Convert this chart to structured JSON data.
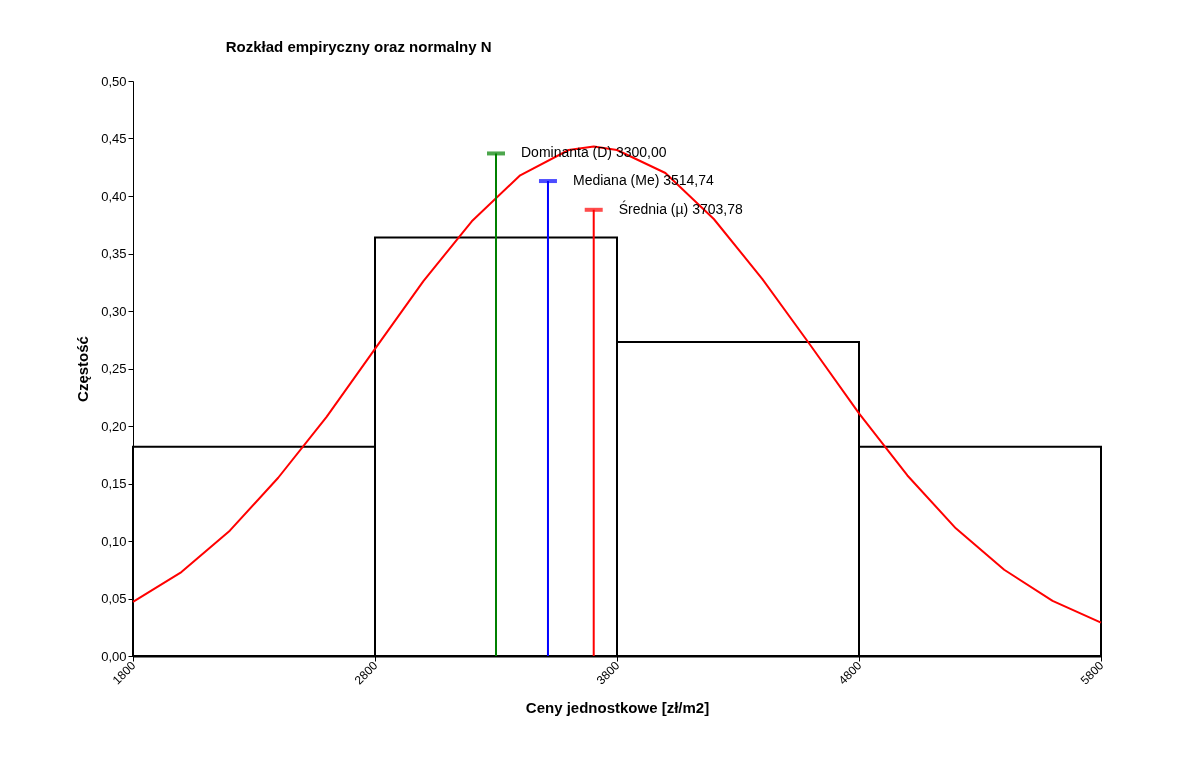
{
  "chart_data": {
    "type": "histogram",
    "title": "Rozkład empiryczny oraz normalny N",
    "xlabel": "Ceny jednostkowe  [zł/m2]",
    "ylabel": "Częstość",
    "bins": [
      1800,
      2800,
      3800,
      4800,
      5800
    ],
    "values": [
      0.182,
      0.364,
      0.273,
      0.182
    ],
    "color": "#000000",
    "series": [
      {
        "type": "line",
        "color": "#ff0000",
        "x": [
          1800,
          2000,
          2200,
          2400,
          2600,
          2800,
          3000,
          3200,
          3400,
          3600,
          3704,
          3800,
          4000,
          4200,
          4400,
          4600,
          4800,
          5000,
          5200,
          5400,
          5600,
          5800
        ],
        "values": [
          0.047,
          0.073,
          0.109,
          0.155,
          0.208,
          0.267,
          0.326,
          0.378,
          0.418,
          0.44,
          0.443,
          0.44,
          0.42,
          0.38,
          0.328,
          0.27,
          0.211,
          0.157,
          0.111,
          0.075,
          0.048,
          0.029
        ]
      },
      {
        "type": "line",
        "name": "Dominanta (D) 3300,00",
        "color": "#008000",
        "x": [
          3300,
          3300
        ],
        "values": [
          0,
          0.437
        ]
      },
      {
        "type": "line",
        "name": "Mediana (Me) 3514,74",
        "color": "#0000ff",
        "x": [
          3514.74,
          3514.74
        ],
        "values": [
          0,
          0.413
        ]
      },
      {
        "type": "line",
        "name": "Średnia (µ) 3703,78",
        "color": "#ff0000",
        "x": [
          3703.78,
          3703.78
        ],
        "values": [
          0,
          0.388
        ]
      }
    ],
    "xlim": [
      1800,
      5800
    ],
    "xticks": [
      1800,
      2800,
      3800,
      4800,
      5800
    ],
    "ylim": [
      0,
      0.5
    ],
    "yticks": [
      {
        "value": 0,
        "label": "0,00"
      },
      {
        "value": 0.05,
        "label": "0,05"
      },
      {
        "value": 0.1,
        "label": "0,10"
      },
      {
        "value": 0.15,
        "label": "0,15"
      },
      {
        "value": 0.2,
        "label": "0,20"
      },
      {
        "value": 0.25,
        "label": "0,25"
      },
      {
        "value": 0.3,
        "label": "0,30"
      },
      {
        "value": 0.35,
        "label": "0,35"
      },
      {
        "value": 0.4,
        "label": "0,40"
      },
      {
        "value": 0.45,
        "label": "0,45"
      },
      {
        "value": 0.5,
        "label": "0,50"
      }
    ],
    "grid": false,
    "legend": "top"
  }
}
